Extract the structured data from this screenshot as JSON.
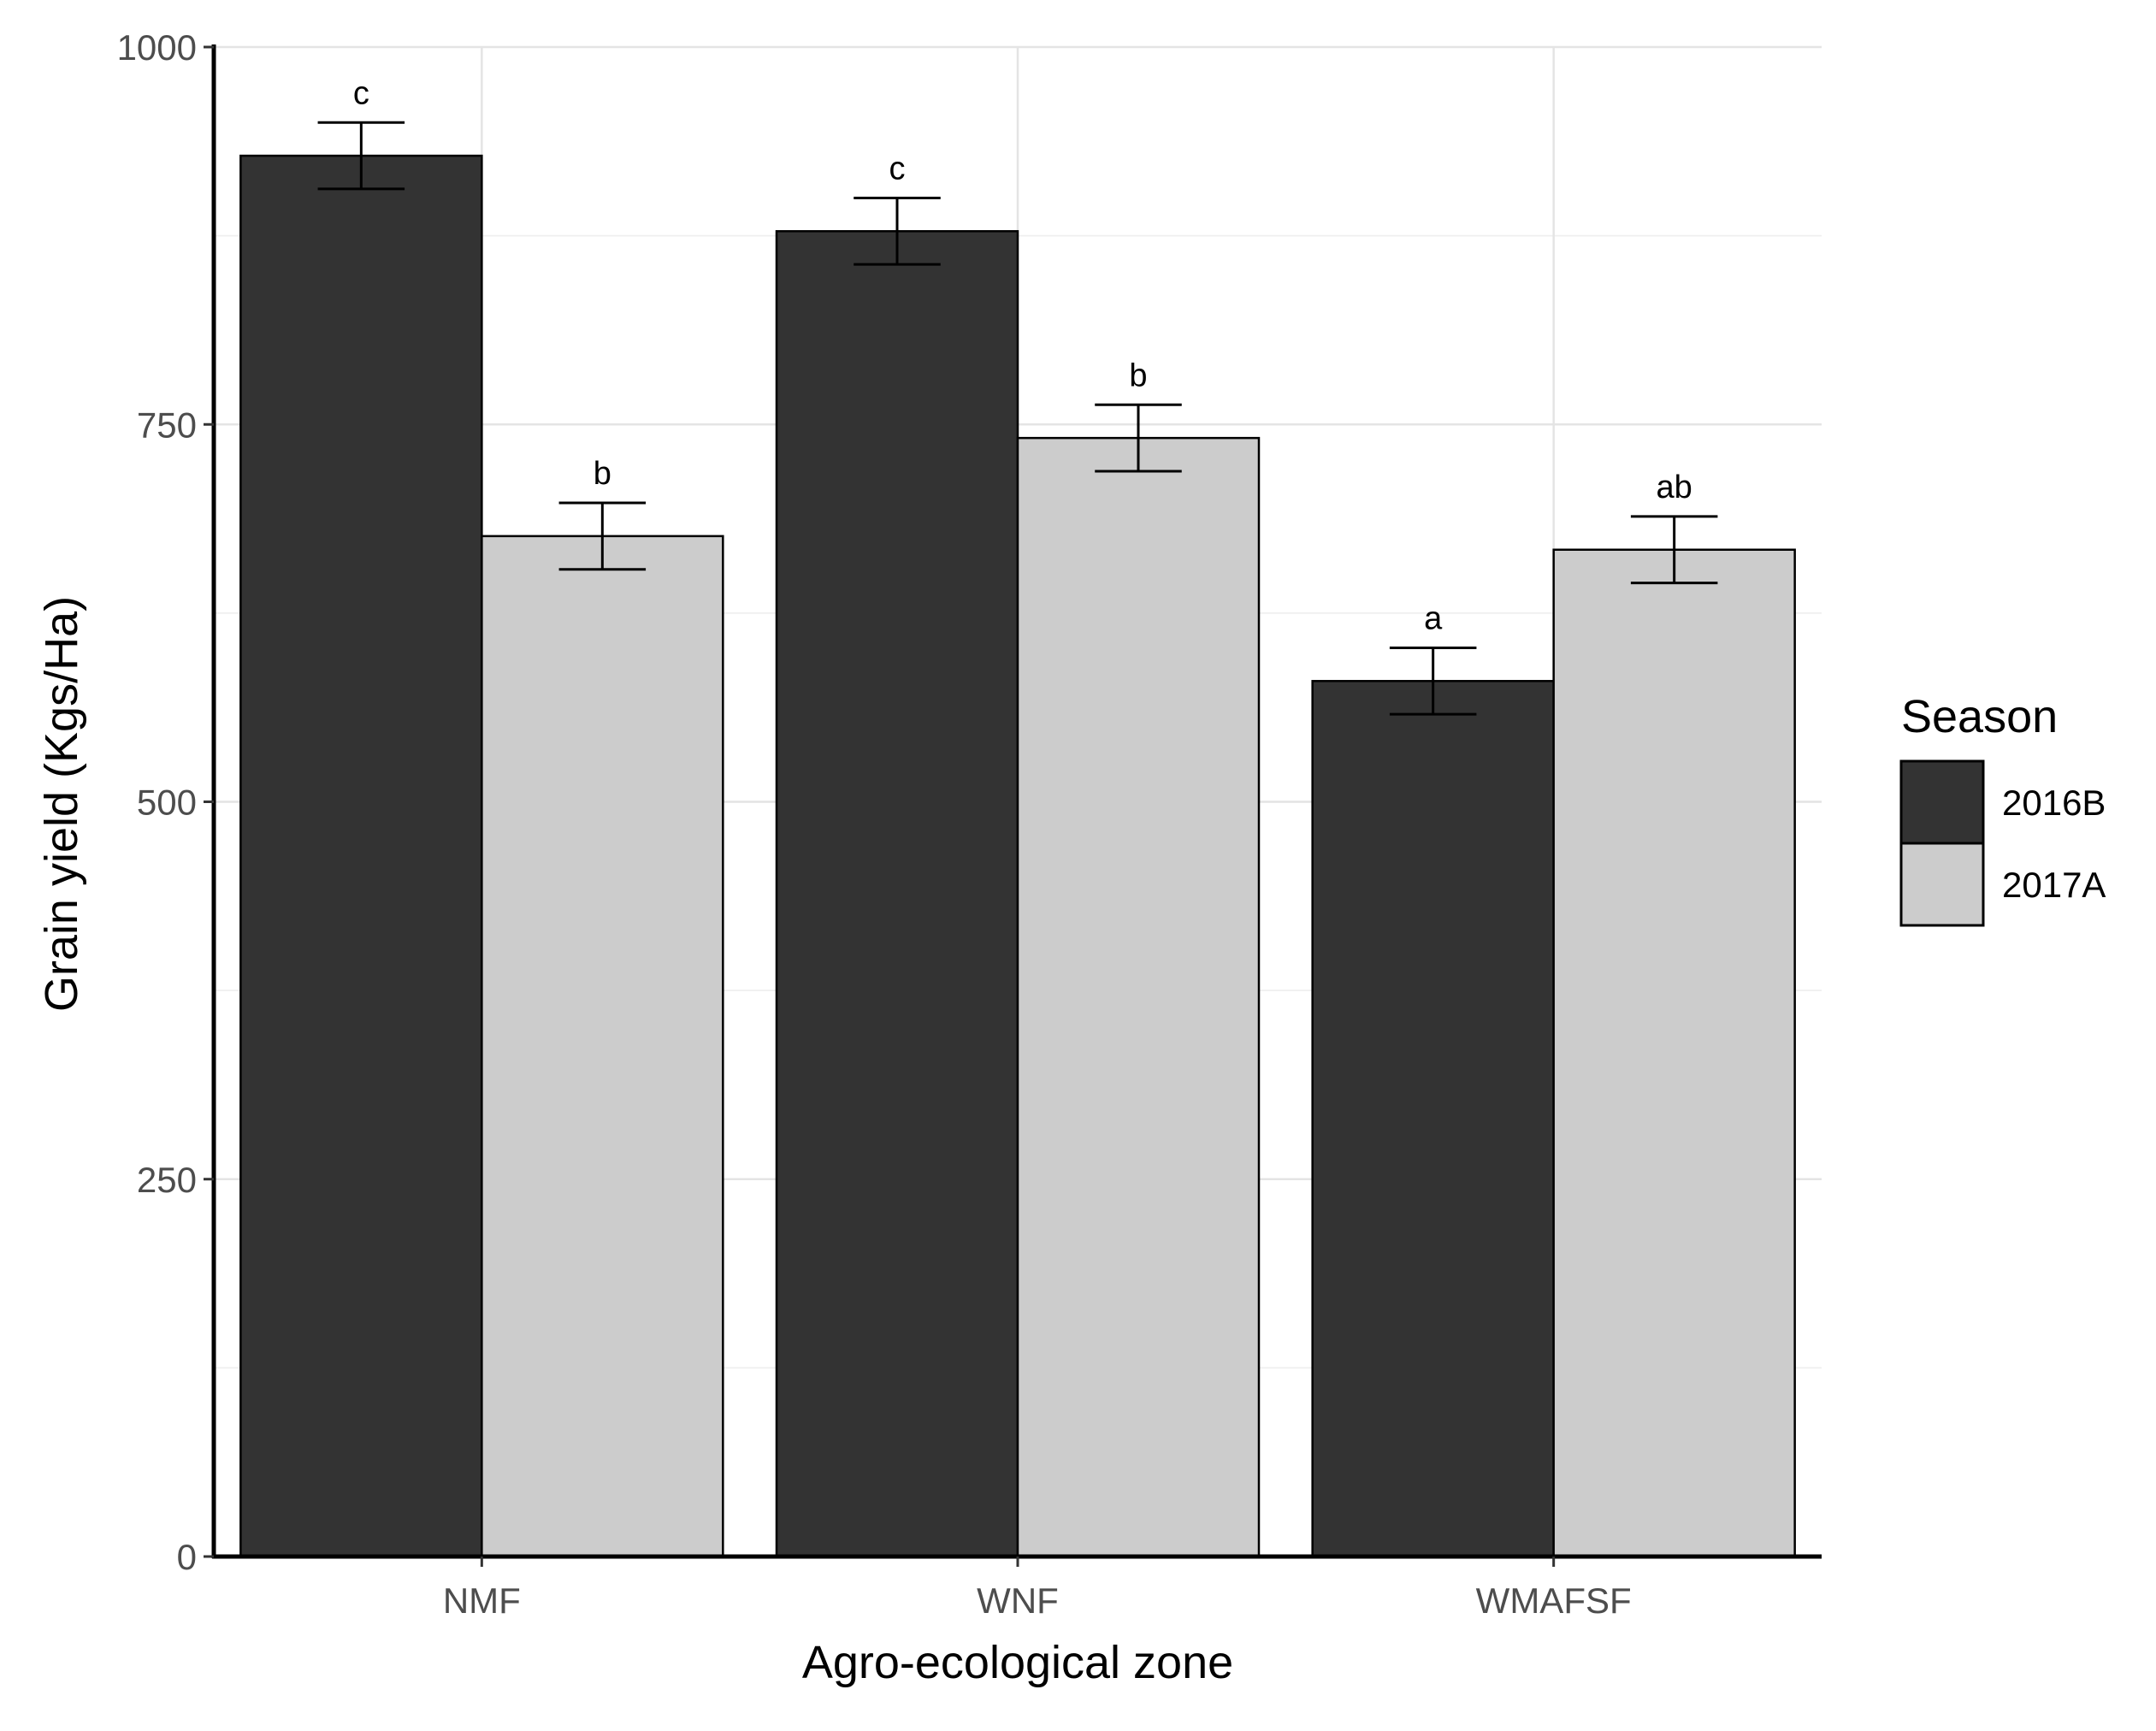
{
  "chart_data": {
    "type": "bar",
    "title": "",
    "xlabel": "Agro-ecological zone",
    "ylabel": "Grain yield (Kgs/Ha)",
    "categories": [
      "NMF",
      "WNF",
      "WMAFSF"
    ],
    "ylim": [
      0,
      1000
    ],
    "yticks": [
      0,
      250,
      500,
      750,
      1000
    ],
    "ytick_labels": [
      "0",
      "250",
      "500",
      "750",
      "1000"
    ],
    "grid": true,
    "legend": {
      "title": "Season",
      "position": "right"
    },
    "series": [
      {
        "name": "2016B",
        "color": "#333333",
        "values": [
          928,
          878,
          580
        ],
        "errors": [
          22,
          22,
          22
        ],
        "labels": [
          "c",
          "c",
          "a"
        ]
      },
      {
        "name": "2017A",
        "color": "#cccccc",
        "values": [
          676,
          741,
          667
        ],
        "errors": [
          22,
          22,
          22
        ],
        "labels": [
          "b",
          "b",
          "ab"
        ]
      }
    ]
  }
}
